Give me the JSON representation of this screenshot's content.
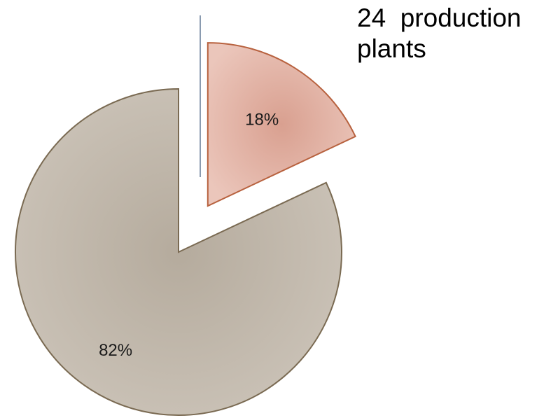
{
  "chart_data": {
    "type": "pie",
    "categories": [
      "",
      ""
    ],
    "values": [
      18,
      82
    ],
    "data_labels": [
      "18%",
      "82%"
    ],
    "exploded": [
      true,
      false
    ],
    "colors": [
      "#e2b1a2",
      "#c4bbaf"
    ],
    "edge_colors": [
      "#b8623f",
      "#7a6a52"
    ],
    "annotation": "24  production\nplants"
  }
}
